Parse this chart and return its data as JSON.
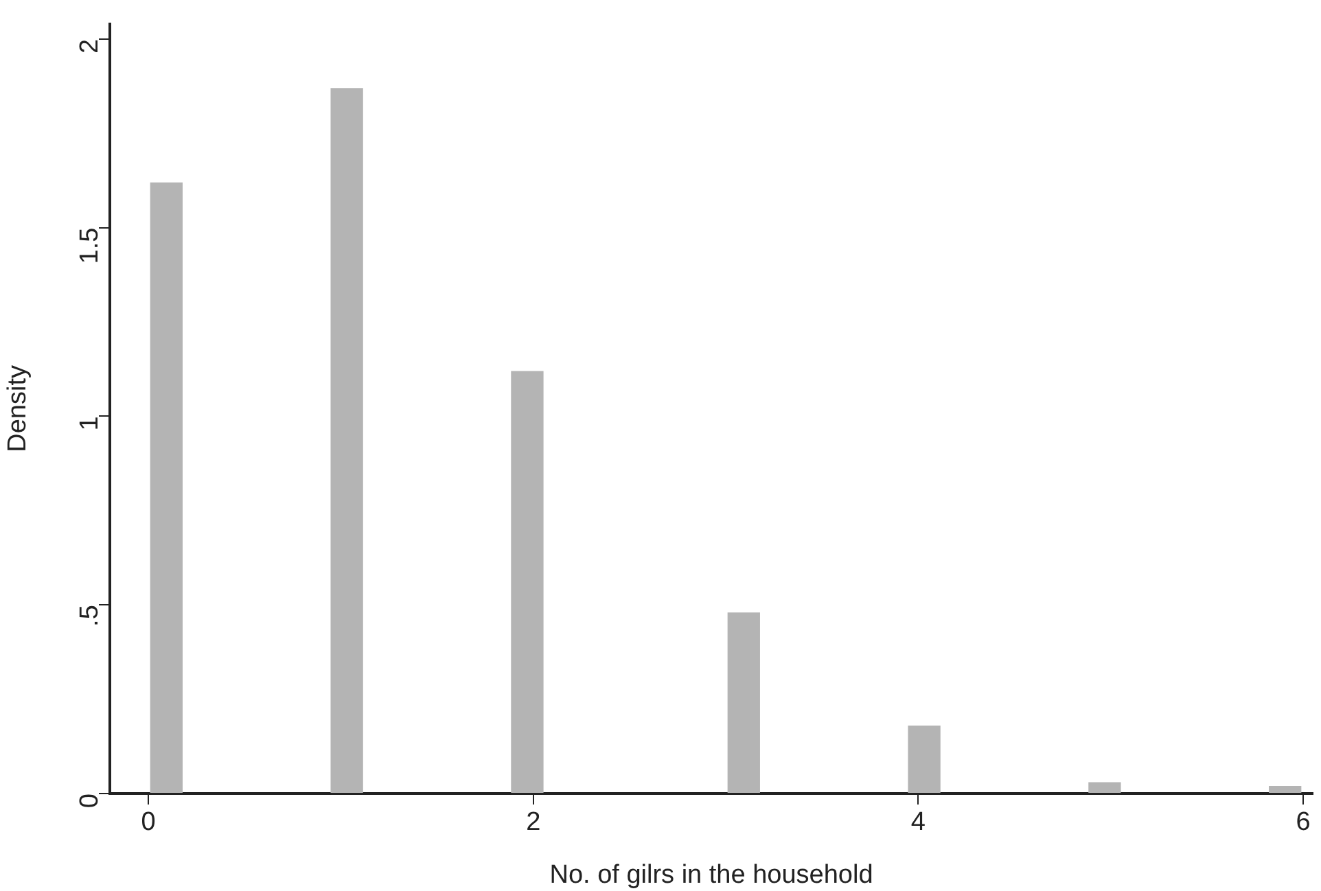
{
  "chart_data": {
    "type": "histogram",
    "xlabel": "No. of gilrs in the household",
    "ylabel": "Density",
    "bins": [
      0,
      0.1875,
      0.375,
      0.5625,
      0.75,
      0.9375,
      1.125,
      1.3125,
      1.5,
      1.6875,
      1.875,
      2.0625,
      2.25,
      2.4375,
      2.625,
      2.8125,
      3,
      3.1875,
      3.375,
      3.5625,
      3.75,
      3.9375,
      4.125,
      4.3125,
      4.5,
      4.6875,
      4.875,
      5.0625,
      5.25,
      5.4375,
      5.625,
      5.8125,
      6
    ],
    "values": [
      1.62,
      0,
      0,
      0,
      0,
      1.87,
      0,
      0,
      0,
      0,
      1.12,
      0,
      0,
      0,
      0,
      0,
      0.48,
      0,
      0,
      0,
      0,
      0.18,
      0,
      0,
      0,
      0,
      0.03,
      0,
      0,
      0,
      0,
      0.02
    ],
    "color": "#b4b4b4",
    "xlim": [
      -0.2,
      6.05
    ],
    "xticks": [
      0,
      2,
      4,
      6
    ],
    "ylim": [
      0,
      2.04
    ],
    "yticks": [
      0,
      {
        "value": 0.5,
        "label": ".5"
      },
      1,
      1.5,
      2
    ],
    "grid": false
  }
}
